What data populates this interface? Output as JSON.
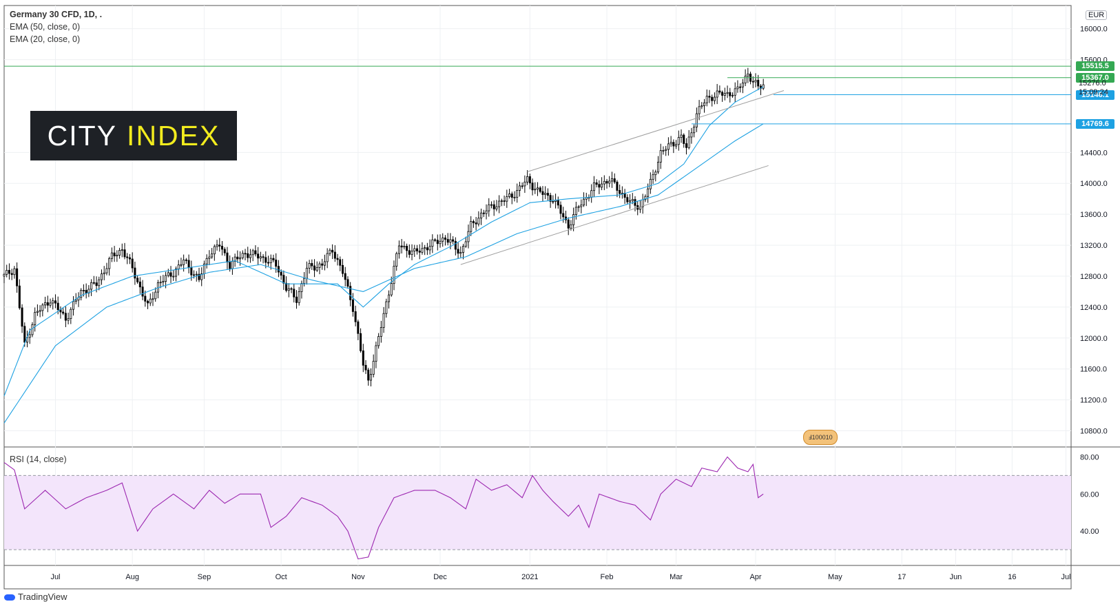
{
  "legend": {
    "title": "Germany 30 CFD, 1D, .",
    "ema1": "EMA (50, close, 0)",
    "ema2": "EMA (20, close, 0)"
  },
  "logo": {
    "word1": "CITY",
    "word2": "INDEX"
  },
  "currency": "EUR",
  "footer": "TradingView",
  "colors": {
    "candle": "#000000",
    "ema": "#1da1e2",
    "level_green": "#34a853",
    "level_blue": "#1da1e2",
    "rsi": "#9c27b0",
    "rsi_band": "#f3e5fb"
  },
  "price_axis": {
    "ticks": [
      "16000.0",
      "15600.0",
      "14400.0",
      "14000.0",
      "13600.0",
      "13200.0",
      "12800.0",
      "12400.0",
      "12000.0",
      "11600.0",
      "11200.0",
      "10800.0"
    ],
    "tick_values": [
      16000,
      15600,
      14400,
      14000,
      13600,
      13200,
      12800,
      12400,
      12000,
      11600,
      11200,
      10800
    ],
    "labels": [
      {
        "text": "15515.5",
        "value": 15515.5,
        "color": "green"
      },
      {
        "text": "15367.0",
        "value": 15367.0,
        "color": "green"
      },
      {
        "text": "15146.1",
        "value": 15146.1,
        "color": "blue"
      },
      {
        "text": "14769.6",
        "value": 14769.6,
        "color": "blue"
      }
    ],
    "last_price": "15276.0",
    "countdown": "15:09:24"
  },
  "rsi": {
    "title": "RSI (14, close)",
    "ticks": [
      "80.00",
      "60.00",
      "40.00"
    ],
    "tick_values": [
      80,
      60,
      40
    ],
    "upper": 70,
    "lower": 30
  },
  "x_axis": {
    "labels": [
      "Jul",
      "Aug",
      "Sep",
      "Oct",
      "Nov",
      "Dec",
      "2021",
      "Feb",
      "Mar",
      "Apr",
      "May",
      "17",
      "Jun",
      "16",
      "Jul"
    ],
    "bar_index": [
      20,
      50,
      78,
      108,
      138,
      170,
      205,
      235,
      262,
      293,
      324,
      350,
      371,
      393,
      414
    ]
  },
  "badge": "Ⅎ100010",
  "chart_data": {
    "type": "candlestick",
    "title": "Germany 30 CFD, 1D",
    "series": [
      {
        "name": "Price",
        "kind": "candles"
      },
      {
        "name": "EMA (20, close, 0)",
        "kind": "line"
      },
      {
        "name": "EMA (50, close, 0)",
        "kind": "line"
      },
      {
        "name": "RSI (14, close)",
        "kind": "line",
        "pane": "lower"
      }
    ],
    "close_path": [
      [
        0,
        12800
      ],
      [
        4,
        12900
      ],
      [
        8,
        11900
      ],
      [
        12,
        12300
      ],
      [
        18,
        12500
      ],
      [
        24,
        12250
      ],
      [
        30,
        12600
      ],
      [
        36,
        12700
      ],
      [
        42,
        13050
      ],
      [
        46,
        13150
      ],
      [
        50,
        12900
      ],
      [
        56,
        12400
      ],
      [
        60,
        12700
      ],
      [
        66,
        12850
      ],
      [
        70,
        13000
      ],
      [
        76,
        12750
      ],
      [
        80,
        13100
      ],
      [
        84,
        13200
      ],
      [
        88,
        12950
      ],
      [
        94,
        13100
      ],
      [
        100,
        13050
      ],
      [
        106,
        12950
      ],
      [
        110,
        12650
      ],
      [
        114,
        12500
      ],
      [
        118,
        12900
      ],
      [
        124,
        12950
      ],
      [
        128,
        13150
      ],
      [
        132,
        12850
      ],
      [
        136,
        12400
      ],
      [
        140,
        11650
      ],
      [
        142,
        11450
      ],
      [
        146,
        12000
      ],
      [
        150,
        12600
      ],
      [
        154,
        13200
      ],
      [
        160,
        13100
      ],
      [
        166,
        13200
      ],
      [
        172,
        13300
      ],
      [
        178,
        13100
      ],
      [
        182,
        13450
      ],
      [
        186,
        13600
      ],
      [
        190,
        13700
      ],
      [
        196,
        13800
      ],
      [
        200,
        13900
      ],
      [
        204,
        14050
      ],
      [
        208,
        13900
      ],
      [
        214,
        13800
      ],
      [
        220,
        13450
      ],
      [
        224,
        13700
      ],
      [
        230,
        13950
      ],
      [
        236,
        14050
      ],
      [
        240,
        13900
      ],
      [
        244,
        13750
      ],
      [
        248,
        13700
      ],
      [
        252,
        14000
      ],
      [
        256,
        14400
      ],
      [
        260,
        14500
      ],
      [
        264,
        14600
      ],
      [
        266,
        14450
      ],
      [
        270,
        14900
      ],
      [
        274,
        15100
      ],
      [
        278,
        15150
      ],
      [
        282,
        15160
      ],
      [
        286,
        15200
      ],
      [
        290,
        15430
      ],
      [
        292,
        15300
      ],
      [
        294,
        15250
      ],
      [
        296,
        15276
      ]
    ],
    "ema20_path": [
      [
        0,
        11250
      ],
      [
        10,
        12100
      ],
      [
        30,
        12550
      ],
      [
        50,
        12800
      ],
      [
        70,
        12900
      ],
      [
        90,
        13000
      ],
      [
        110,
        12700
      ],
      [
        130,
        12700
      ],
      [
        140,
        12400
      ],
      [
        150,
        12700
      ],
      [
        160,
        12950
      ],
      [
        175,
        13200
      ],
      [
        190,
        13500
      ],
      [
        205,
        13750
      ],
      [
        220,
        13800
      ],
      [
        240,
        13850
      ],
      [
        255,
        14000
      ],
      [
        265,
        14250
      ],
      [
        275,
        14750
      ],
      [
        285,
        15050
      ],
      [
        296,
        15250
      ]
    ],
    "ema50_path": [
      [
        0,
        10900
      ],
      [
        20,
        11900
      ],
      [
        40,
        12400
      ],
      [
        60,
        12650
      ],
      [
        80,
        12850
      ],
      [
        100,
        12950
      ],
      [
        120,
        12750
      ],
      [
        140,
        12600
      ],
      [
        160,
        12900
      ],
      [
        180,
        13050
      ],
      [
        200,
        13350
      ],
      [
        220,
        13550
      ],
      [
        240,
        13700
      ],
      [
        255,
        13850
      ],
      [
        270,
        14200
      ],
      [
        285,
        14550
      ],
      [
        296,
        14770
      ]
    ],
    "trendlines": [
      {
        "from": [
          178,
          12950
        ],
        "to": [
          298,
          14230
        ]
      },
      {
        "from": [
          204,
          14150
        ],
        "to": [
          304,
          15200
        ]
      }
    ],
    "horizontal_levels": [
      15515.5,
      15367.0,
      15146.1,
      14769.6
    ],
    "rsi_path": [
      [
        0,
        77
      ],
      [
        4,
        73
      ],
      [
        8,
        52
      ],
      [
        16,
        62
      ],
      [
        24,
        52
      ],
      [
        32,
        58
      ],
      [
        40,
        62
      ],
      [
        46,
        66
      ],
      [
        52,
        40
      ],
      [
        58,
        52
      ],
      [
        66,
        60
      ],
      [
        74,
        52
      ],
      [
        80,
        62
      ],
      [
        86,
        55
      ],
      [
        92,
        60
      ],
      [
        100,
        60
      ],
      [
        104,
        42
      ],
      [
        110,
        48
      ],
      [
        116,
        58
      ],
      [
        124,
        54
      ],
      [
        130,
        48
      ],
      [
        134,
        40
      ],
      [
        138,
        25
      ],
      [
        142,
        26
      ],
      [
        146,
        42
      ],
      [
        152,
        58
      ],
      [
        160,
        62
      ],
      [
        168,
        62
      ],
      [
        174,
        58
      ],
      [
        180,
        52
      ],
      [
        184,
        68
      ],
      [
        190,
        62
      ],
      [
        196,
        65
      ],
      [
        202,
        58
      ],
      [
        206,
        70
      ],
      [
        210,
        62
      ],
      [
        214,
        56
      ],
      [
        220,
        48
      ],
      [
        224,
        54
      ],
      [
        228,
        42
      ],
      [
        232,
        60
      ],
      [
        240,
        56
      ],
      [
        246,
        54
      ],
      [
        252,
        46
      ],
      [
        256,
        60
      ],
      [
        262,
        68
      ],
      [
        268,
        64
      ],
      [
        272,
        74
      ],
      [
        278,
        72
      ],
      [
        282,
        80
      ],
      [
        286,
        74
      ],
      [
        290,
        72
      ],
      [
        292,
        76
      ],
      [
        294,
        58
      ],
      [
        296,
        60
      ]
    ],
    "rsi_ylim": [
      20,
      85
    ],
    "ylim": [
      10600,
      16300
    ],
    "xlim": [
      0,
      416
    ]
  }
}
